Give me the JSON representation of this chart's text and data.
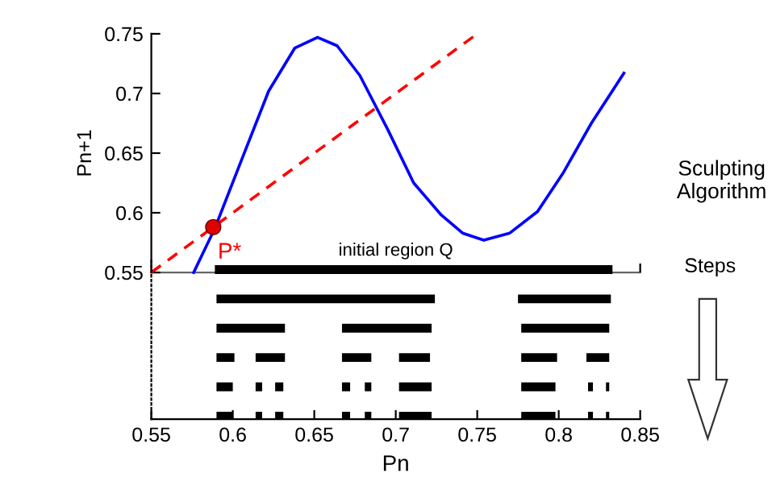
{
  "chart_data": [
    {
      "type": "line",
      "ylabel": "Pn+1",
      "xlim": [
        0.55,
        0.85
      ],
      "ylim": [
        0.55,
        0.75
      ],
      "xticks": [
        {
          "value": 0.85,
          "label": null
        }
      ],
      "yticks": [
        0.55,
        {
          "value": 0.6,
          "label": "0.6"
        },
        0.65,
        {
          "value": 0.7,
          "label": "0.7"
        },
        0.75
      ],
      "tick_labels": "y",
      "grid": false,
      "legend": false,
      "series": [
        {
          "type": "line",
          "color": "#0000ff",
          "line_style": "solid",
          "x": [
            0.576,
            0.589,
            0.605,
            0.622,
            0.638,
            0.652,
            0.664,
            0.678,
            0.695,
            0.711,
            0.728,
            0.741,
            0.754,
            0.77,
            0.787,
            0.803,
            0.82,
            0.84
          ],
          "values": [
            0.55,
            0.587,
            0.643,
            0.702,
            0.738,
            0.747,
            0.74,
            0.715,
            0.67,
            0.625,
            0.598,
            0.583,
            0.577,
            0.583,
            0.601,
            0.634,
            0.675,
            0.717
          ]
        },
        {
          "type": "line",
          "color": "#ff0000",
          "line_style": "dashed",
          "x": [
            0.55,
            0.75
          ],
          "values": [
            0.55,
            0.75
          ]
        },
        {
          "type": "scatter",
          "color": "#e00000",
          "marker": "circle",
          "x": [
            0.588
          ],
          "values": [
            0.588
          ]
        }
      ],
      "annotations": [
        {
          "text": "P*",
          "x": 0.588,
          "y": 0.588
        }
      ]
    },
    {
      "type": "bar",
      "orientation": "horizontal",
      "categories": [
        null,
        null,
        null,
        null,
        null,
        null
      ],
      "xlabel": "Pn",
      "xlim": [
        0.55,
        0.85
      ],
      "xticks": [
        0.55,
        {
          "value": 0.6,
          "label": "0.6"
        },
        0.65,
        {
          "value": 0.7,
          "label": "0.7"
        },
        0.75,
        {
          "value": 0.8,
          "label": "0.8"
        },
        0.85
      ],
      "tick_labels": "x",
      "grid": false,
      "legend": false,
      "series": [
        {
          "color": "#000000",
          "base": [
            0.589,
            0.59,
            0.59,
            0.59,
            0.59,
            0.59
          ],
          "values": [
            0.244,
            0.134,
            0.042,
            0.011,
            0.01,
            0.01
          ]
        },
        {
          "color": "#000000",
          "base": [
            null,
            0.775,
            0.667,
            0.614,
            0.614,
            0.614
          ],
          "values": [
            null,
            0.057,
            0.055,
            0.018,
            0.004,
            0.004
          ]
        },
        {
          "color": "#000000",
          "base": [
            null,
            null,
            0.777,
            0.667,
            0.626,
            0.626
          ],
          "values": [
            null,
            null,
            0.054,
            0.018,
            0.005,
            0.005
          ]
        },
        {
          "color": "#000000",
          "base": [
            null,
            null,
            null,
            0.702,
            0.667,
            0.667
          ],
          "values": [
            null,
            null,
            null,
            0.019,
            0.005,
            0.005
          ]
        },
        {
          "color": "#000000",
          "base": [
            null,
            null,
            null,
            0.777,
            0.681,
            0.681
          ],
          "values": [
            null,
            null,
            null,
            0.022,
            0.004,
            0.004
          ]
        },
        {
          "color": "#000000",
          "base": [
            null,
            null,
            null,
            0.817,
            0.702,
            0.702
          ],
          "values": [
            null,
            null,
            null,
            0.014,
            0.02,
            0.02
          ]
        },
        {
          "color": "#000000",
          "base": [
            null,
            null,
            null,
            null,
            0.777,
            0.777
          ],
          "values": [
            null,
            null,
            null,
            null,
            0.021,
            0.021
          ]
        },
        {
          "color": "#000000",
          "base": [
            null,
            null,
            null,
            null,
            0.818,
            0.818
          ],
          "values": [
            null,
            null,
            null,
            null,
            0.003,
            0.003
          ]
        },
        {
          "color": "#000000",
          "base": [
            null,
            null,
            null,
            null,
            0.829,
            0.829
          ],
          "values": [
            null,
            null,
            null,
            null,
            0.002,
            0.002
          ]
        }
      ],
      "annotations": [
        "initial region Q",
        "Sculpting\nAlgorithm",
        "Steps"
      ]
    }
  ]
}
